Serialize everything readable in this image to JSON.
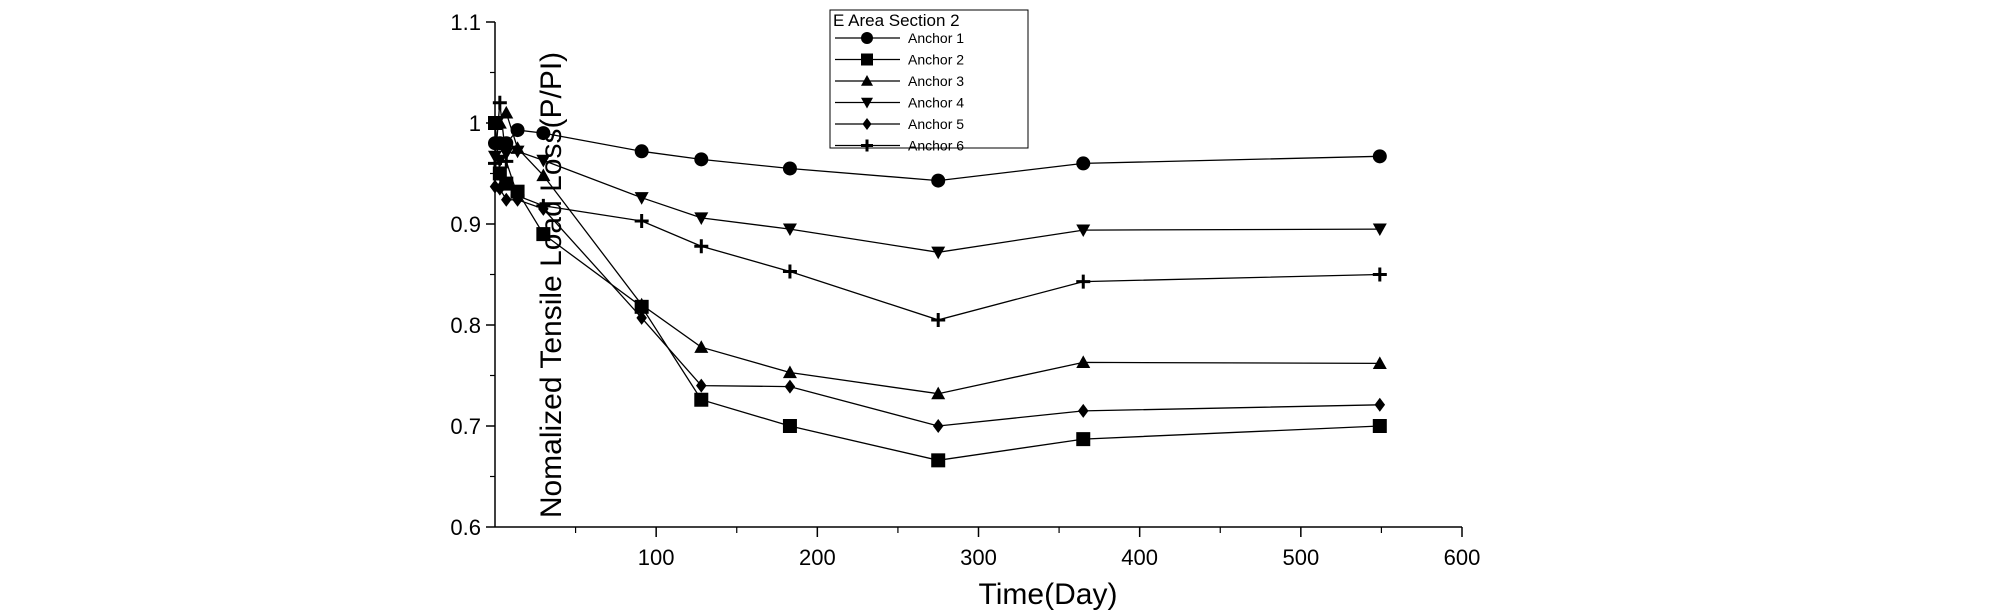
{
  "chart_data": {
    "type": "line",
    "title": "",
    "xlabel": "Time(Day)",
    "ylabel": "Nomalized Tensile Load Loss(P/PI)",
    "xlim": [
      0,
      600
    ],
    "ylim": [
      0.6,
      1.1
    ],
    "x_ticks": [
      100,
      200,
      300,
      400,
      500,
      600
    ],
    "y_ticks": [
      0.6,
      0.7,
      0.8,
      0.9,
      1.0,
      1.1
    ],
    "x_tick_labels": [
      "100",
      "200",
      "300",
      "400",
      "500",
      "600"
    ],
    "y_tick_labels": [
      "0.6",
      "0.7",
      "0.8",
      "0.9",
      "1",
      "1.1"
    ],
    "grid": false,
    "legend": {
      "title": "E Area Section 2",
      "position": "top-center"
    },
    "series": [
      {
        "name": "Anchor 1",
        "marker": "circle",
        "color": "#000000",
        "x": [
          0,
          3,
          7,
          14,
          30,
          91,
          128,
          183,
          275,
          365,
          549
        ],
        "y": [
          0.98,
          0.98,
          0.98,
          0.993,
          0.99,
          0.972,
          0.964,
          0.955,
          0.943,
          0.96,
          0.967
        ]
      },
      {
        "name": "Anchor 2",
        "marker": "square",
        "color": "#000000",
        "x": [
          0,
          3,
          7,
          14,
          30,
          91,
          128,
          183,
          275,
          365,
          549
        ],
        "y": [
          1.0,
          0.95,
          0.94,
          0.932,
          0.89,
          0.818,
          0.726,
          0.7,
          0.666,
          0.687,
          0.7
        ]
      },
      {
        "name": "Anchor 3",
        "marker": "triangle-up",
        "color": "#000000",
        "x": [
          0,
          3,
          7,
          14,
          30,
          91,
          128,
          183,
          275,
          365,
          549
        ],
        "y": [
          1.0,
          1.0,
          1.01,
          0.975,
          0.948,
          0.82,
          0.778,
          0.753,
          0.732,
          0.763,
          0.762
        ]
      },
      {
        "name": "Anchor 4",
        "marker": "triangle-down",
        "color": "#000000",
        "x": [
          0,
          3,
          7,
          14,
          30,
          91,
          128,
          183,
          275,
          365,
          549
        ],
        "y": [
          0.967,
          0.963,
          0.97,
          0.972,
          0.963,
          0.926,
          0.906,
          0.895,
          0.872,
          0.894,
          0.895
        ]
      },
      {
        "name": "Anchor 5",
        "marker": "diamond",
        "color": "#000000",
        "x": [
          0,
          3,
          7,
          14,
          30,
          91,
          128,
          183,
          275,
          365,
          549
        ],
        "y": [
          0.937,
          0.935,
          0.924,
          0.924,
          0.915,
          0.807,
          0.74,
          0.739,
          0.7,
          0.715,
          0.721
        ]
      },
      {
        "name": "Anchor 6",
        "marker": "plus",
        "color": "#000000",
        "x": [
          0,
          3,
          7,
          14,
          30,
          91,
          128,
          183,
          275,
          365,
          549
        ],
        "y": [
          0.96,
          1.02,
          0.962,
          0.928,
          0.918,
          0.903,
          0.878,
          0.853,
          0.805,
          0.843,
          0.85
        ]
      }
    ]
  }
}
